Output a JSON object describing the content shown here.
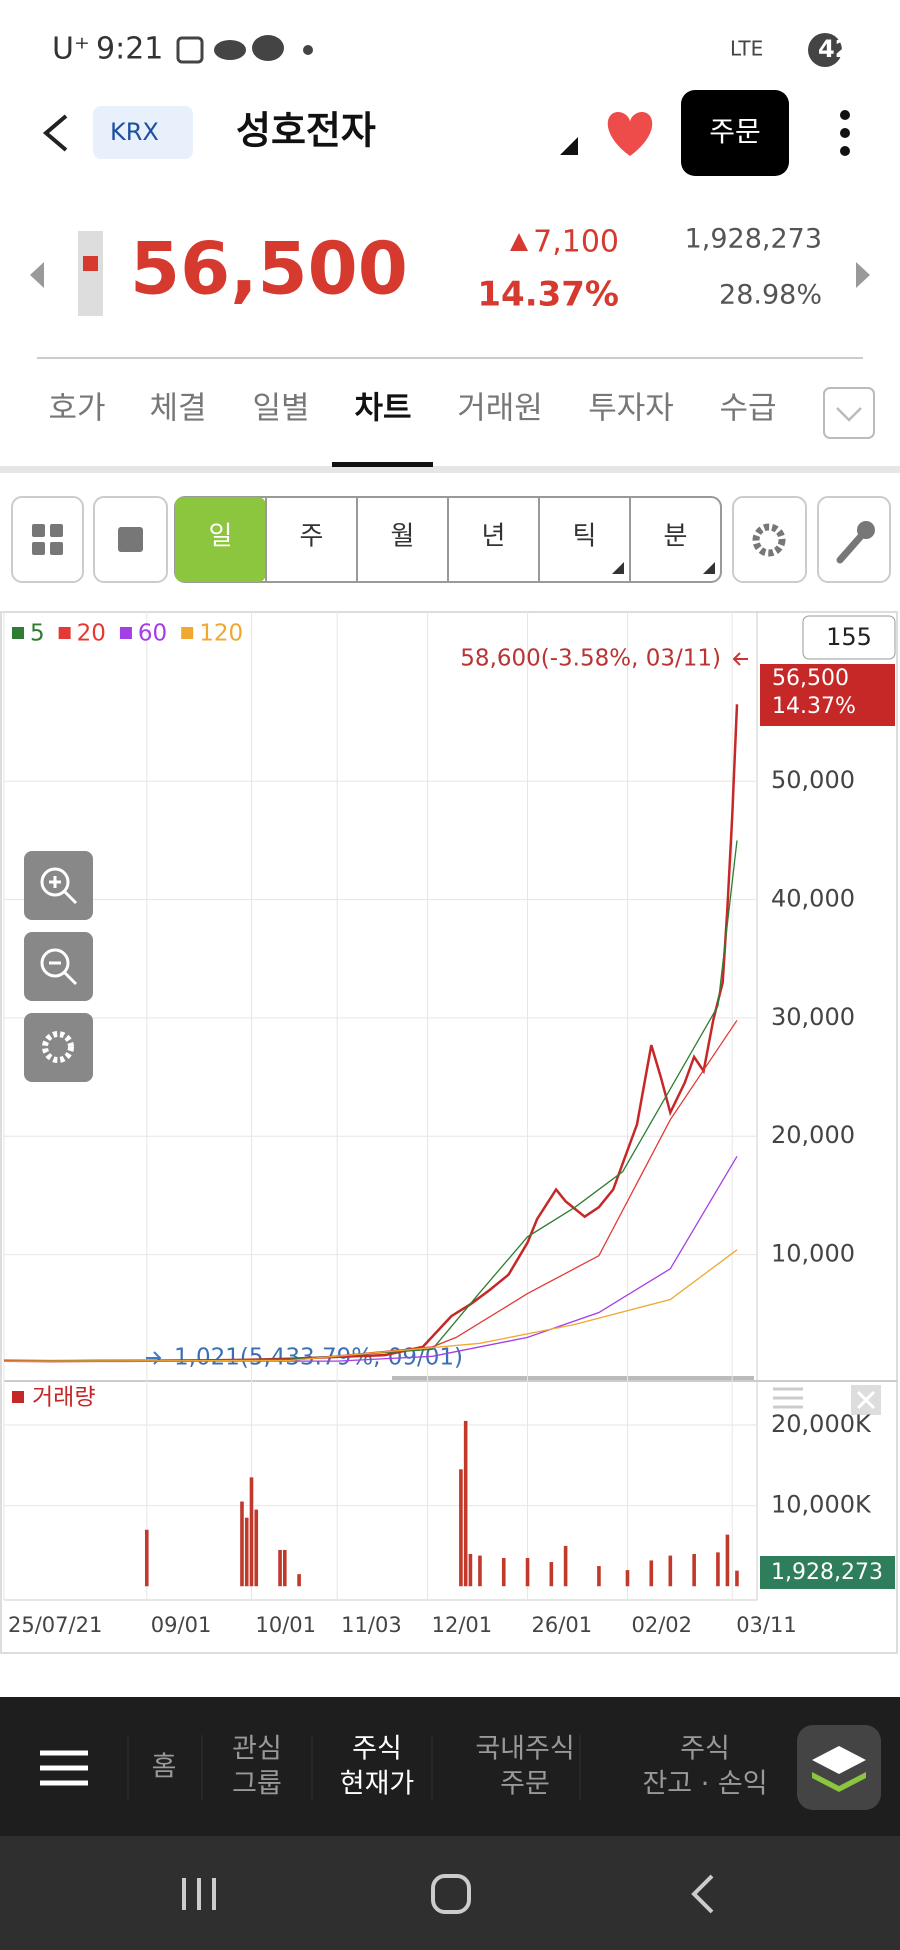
{
  "status_bar": {
    "carrier": "U⁺",
    "time": "9:21",
    "network": "LTE",
    "battery": "42"
  },
  "header": {
    "exchange": "KRX",
    "name": "성호전자",
    "order_button": "주문"
  },
  "quote": {
    "price": "56,500",
    "change": "7,100",
    "change_pct": "14.37%",
    "volume": "1,928,273",
    "turnover": "28.98%"
  },
  "tabs": [
    "호가",
    "체결",
    "일별",
    "차트",
    "거래원",
    "투자자",
    "수급"
  ],
  "active_tab": 3,
  "periods": [
    "일",
    "주",
    "월",
    "년",
    "틱",
    "분"
  ],
  "active_period": 0,
  "chart_data": {
    "type": "line",
    "visible_count": "155",
    "high_label": "58,600(-3.58%, 03/11)",
    "low_label": "1,021(5,433.79%, 09/01)",
    "last_price_label": [
      "56,500",
      "14.37%"
    ],
    "xlim": [
      0,
      158
    ],
    "xticks": [
      {
        "value": 0,
        "label": "25/07/21"
      },
      {
        "value": 30,
        "label": "09/01"
      },
      {
        "value": 52,
        "label": "10/01"
      },
      {
        "value": 70,
        "label": "11/03"
      },
      {
        "value": 89,
        "label": "12/01"
      },
      {
        "value": 110,
        "label": "26/01"
      },
      {
        "value": 131,
        "label": "02/02"
      },
      {
        "value": 153,
        "label": "03/11"
      }
    ],
    "ylim": [
      -600,
      64300
    ],
    "yticks": [
      {
        "value": 10000,
        "label": "10,000"
      },
      {
        "value": 20000,
        "label": "20,000"
      },
      {
        "value": 30000,
        "label": "30,000"
      },
      {
        "value": 40000,
        "label": "40,000"
      },
      {
        "value": 50000,
        "label": "50,000"
      }
    ],
    "grid": true,
    "series": [
      {
        "color": "#c62828",
        "x": [
          0,
          10,
          20,
          30,
          40,
          50,
          60,
          70,
          80,
          88,
          94,
          98,
          102,
          106,
          110,
          112,
          116,
          118,
          122,
          125,
          128,
          130,
          133,
          136,
          138,
          140,
          143,
          145,
          147,
          149,
          151,
          152,
          153,
          154
        ],
        "values": [
          1020,
          1000,
          1010,
          1021,
          1050,
          1100,
          1200,
          1350,
          1500,
          2200,
          4800,
          5800,
          7000,
          8300,
          11000,
          13000,
          15500,
          14500,
          13200,
          14000,
          15500,
          17700,
          21000,
          27700,
          25000,
          22000,
          24500,
          26700,
          25500,
          29800,
          33000,
          39300,
          47000,
          56500
        ]
      },
      {
        "name": "5",
        "color": "#2e7d32",
        "x": [
          0,
          60,
          90,
          100,
          110,
          120,
          130,
          140,
          150,
          154
        ],
        "values": [
          1000,
          1150,
          2000,
          6800,
          11500,
          14000,
          17000,
          24000,
          31000,
          45000
        ]
      },
      {
        "name": "20",
        "color": "#e53935",
        "x": [
          0,
          60,
          90,
          95,
          110,
          125,
          140,
          154
        ],
        "values": [
          1000,
          1050,
          2200,
          3000,
          6700,
          9900,
          21400,
          29800
        ]
      },
      {
        "name": "60",
        "color": "#a43ee6",
        "x": [
          0,
          70,
          90,
          110,
          125,
          140,
          154
        ],
        "values": [
          1000,
          1000,
          1400,
          3000,
          5100,
          8800,
          18300
        ]
      },
      {
        "name": "120",
        "color": "#f0a830",
        "x": [
          0,
          60,
          100,
          120,
          140,
          154
        ],
        "values": [
          1000,
          1050,
          2500,
          4100,
          6200,
          10400
        ]
      }
    ],
    "volume": {
      "type": "bar",
      "name": "거래량",
      "color": "#c0392b",
      "x": [
        30,
        50,
        51,
        52,
        53,
        58,
        59,
        62,
        96,
        97,
        98,
        100,
        105,
        110,
        115,
        118,
        125,
        131,
        136,
        140,
        145,
        150,
        152,
        154
      ],
      "values": [
        7000,
        10500,
        8500,
        13500,
        9500,
        4500,
        4500,
        1500,
        14500,
        20500,
        4000,
        3800,
        3500,
        3500,
        3000,
        5000,
        2500,
        2000,
        3200,
        3800,
        4000,
        4200,
        6400,
        1928.273
      ],
      "current_label": "1,928,273",
      "ylim": [
        -590,
        25200
      ],
      "yticks": [
        {
          "value": 10000,
          "label": "10,000K"
        },
        {
          "value": 20000,
          "label": "20,000K"
        }
      ]
    }
  },
  "bottom_nav": [
    [
      "홈"
    ],
    [
      "관심",
      "그룹"
    ],
    [
      "주식",
      "현재가"
    ],
    [
      "국내주식",
      "주문"
    ],
    [
      "주식",
      "잔고 · 손익"
    ]
  ],
  "active_nav": 2
}
